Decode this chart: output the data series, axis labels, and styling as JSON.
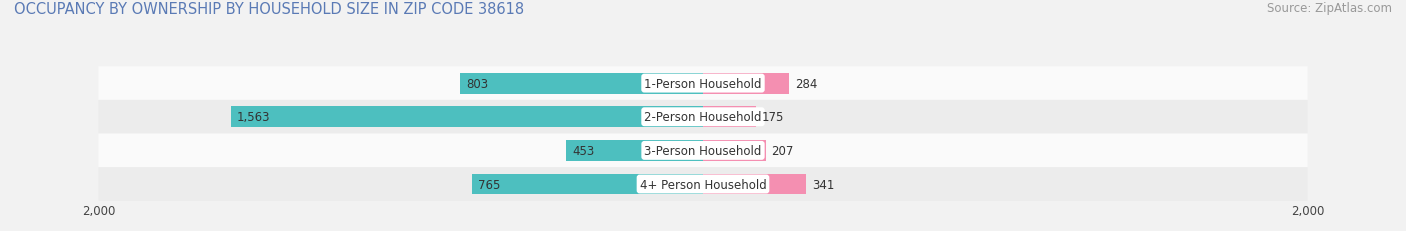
{
  "title": "OCCUPANCY BY OWNERSHIP BY HOUSEHOLD SIZE IN ZIP CODE 38618",
  "source": "Source: ZipAtlas.com",
  "categories": [
    "1-Person Household",
    "2-Person Household",
    "3-Person Household",
    "4+ Person Household"
  ],
  "owner_values": [
    803,
    1563,
    453,
    765
  ],
  "renter_values": [
    284,
    175,
    207,
    341
  ],
  "owner_color": "#4dbfbf",
  "renter_color": "#f48fb1",
  "background_color": "#f2f2f2",
  "axis_limit": 2000,
  "title_color": "#5a7ab5",
  "title_fontsize": 10.5,
  "source_fontsize": 8.5,
  "value_fontsize": 8.5,
  "cat_fontsize": 8.5,
  "legend_fontsize": 9,
  "bar_height": 0.62,
  "row_bg_colors": [
    "#fafafa",
    "#ececec",
    "#fafafa",
    "#ececec"
  ]
}
